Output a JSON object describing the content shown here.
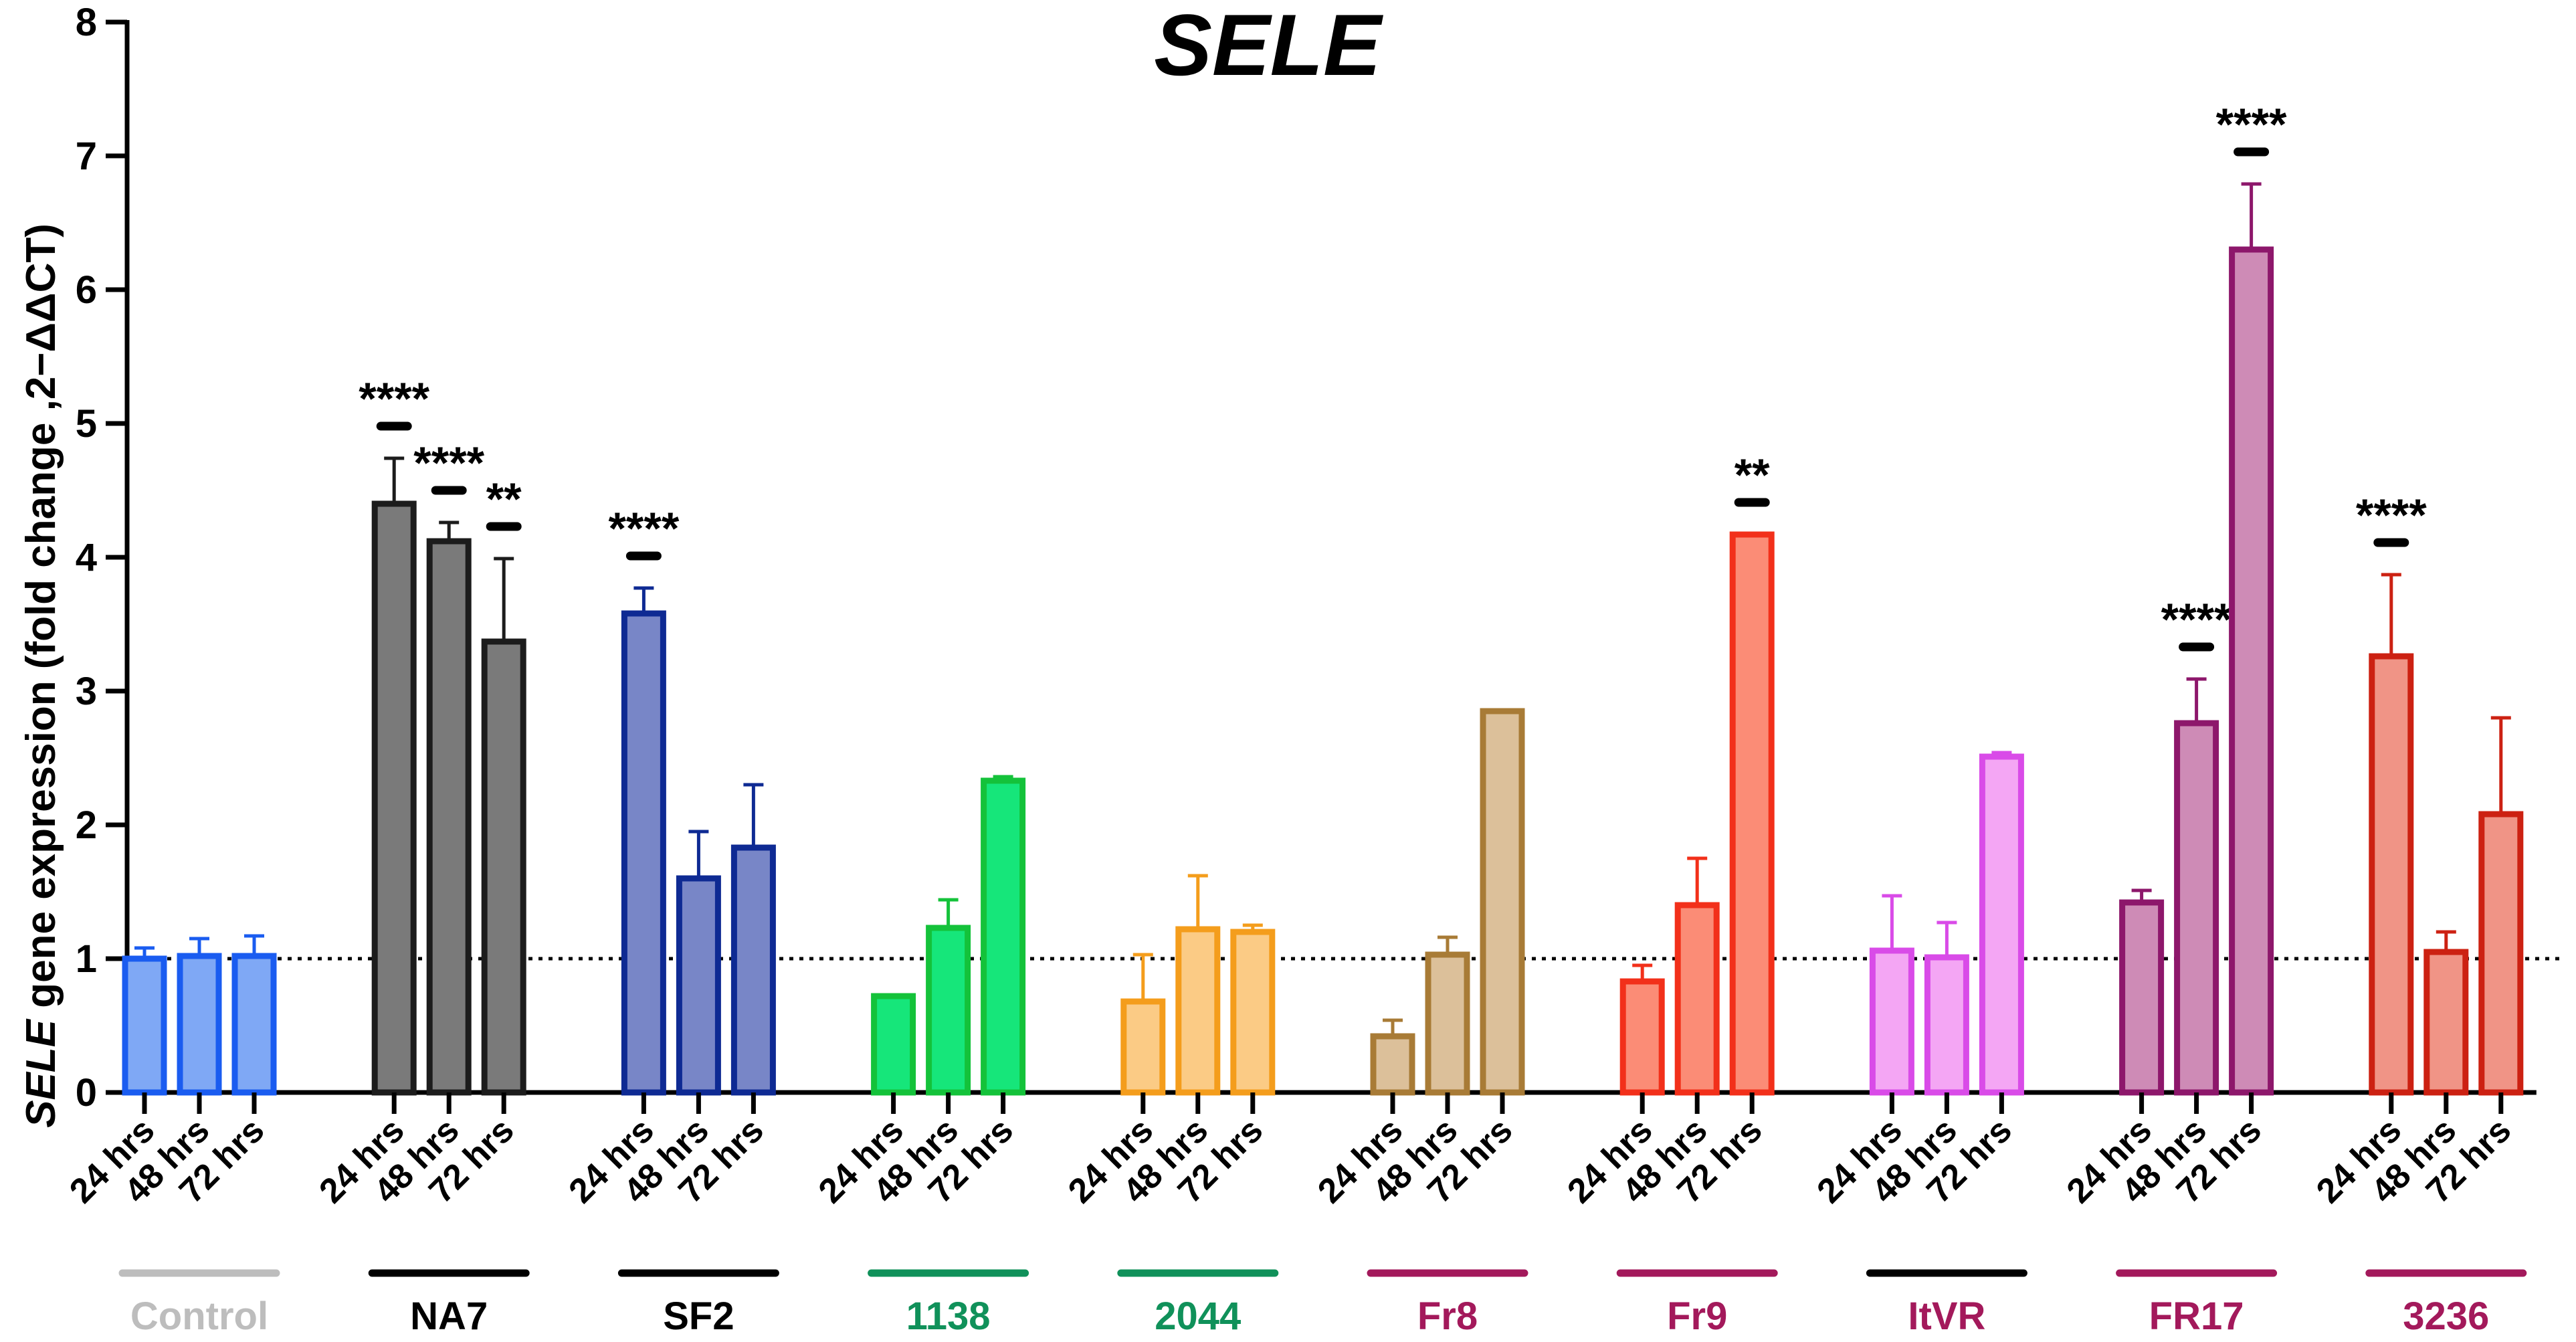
{
  "chart_data": {
    "type": "bar",
    "title": "SELE",
    "ylabel_italic": "SELE",
    "ylabel_rest": " gene expression (fold change ,2−ΔΔCT)",
    "ylim": [
      0,
      8
    ],
    "yticks": [
      "0",
      "1",
      "2",
      "3",
      "4",
      "5",
      "6",
      "7",
      "8"
    ],
    "reference_line": 1,
    "time_labels": [
      "24 hrs",
      "48 hrs",
      "72 hrs"
    ],
    "groups": [
      {
        "name": "Control",
        "label_color": "#BDBDBD",
        "fill": "#7FA8F5",
        "edge": "#1A5CF0",
        "values": [
          1.0,
          1.02,
          1.02
        ],
        "errors": [
          0.08,
          0.13,
          0.15
        ],
        "sig": [
          "",
          "",
          ""
        ]
      },
      {
        "name": "NA7",
        "label_color": "#000000",
        "fill": "#7A7A7A",
        "edge": "#1C1C1C",
        "values": [
          4.4,
          4.12,
          3.37
        ],
        "errors": [
          0.34,
          0.14,
          0.62
        ],
        "sig": [
          "****",
          "****",
          "**"
        ]
      },
      {
        "name": "SF2",
        "label_color": "#000000",
        "fill": "#7886C7",
        "edge": "#0E2A93",
        "values": [
          3.58,
          1.6,
          1.83
        ],
        "errors": [
          0.19,
          0.35,
          0.47
        ],
        "sig": [
          "****",
          "",
          ""
        ]
      },
      {
        "name": "1138",
        "label_color": "#10915A",
        "fill": "#16E67A",
        "edge": "#14C23A",
        "values": [
          0.72,
          1.23,
          2.33
        ],
        "errors": [
          0.0,
          0.21,
          0.03
        ],
        "sig": [
          "",
          "",
          ""
        ]
      },
      {
        "name": "2044",
        "label_color": "#10915A",
        "fill": "#FBCB85",
        "edge": "#F49D1C",
        "values": [
          0.68,
          1.22,
          1.2
        ],
        "errors": [
          0.35,
          0.4,
          0.05
        ],
        "sig": [
          "",
          "",
          ""
        ]
      },
      {
        "name": "Fr8",
        "label_color": "#A3195B",
        "fill": "#DCC09A",
        "edge": "#A87B36",
        "values": [
          0.42,
          1.03,
          2.85
        ],
        "errors": [
          0.12,
          0.13,
          0.0
        ],
        "sig": [
          "",
          "",
          ""
        ]
      },
      {
        "name": "Fr9",
        "label_color": "#A3195B",
        "fill": "#FB8C76",
        "edge": "#F2301A",
        "values": [
          0.83,
          1.4,
          4.17
        ],
        "errors": [
          0.12,
          0.35,
          0.0
        ],
        "sig": [
          "",
          "",
          "**"
        ]
      },
      {
        "name": "ItVR",
        "label_color": "#A3195B",
        "fill": "#F4A6F4",
        "edge": "#D94BE8",
        "values": [
          1.06,
          1.01,
          2.51
        ],
        "errors": [
          0.41,
          0.26,
          0.03
        ],
        "sig": [
          "",
          "",
          ""
        ]
      },
      {
        "name": "FR17",
        "label_color": "#A3195B",
        "fill": "#CE8BB6",
        "edge": "#8D176B",
        "values": [
          1.42,
          2.76,
          6.3
        ],
        "errors": [
          0.09,
          0.33,
          0.49
        ],
        "sig": [
          "",
          "****",
          "****"
        ]
      },
      {
        "name": "3236",
        "label_color": "#A3195B",
        "fill": "#F09486",
        "edge": "#CC2112",
        "values": [
          3.26,
          1.05,
          2.08
        ],
        "errors": [
          0.61,
          0.15,
          0.72
        ],
        "sig": [
          "****",
          "",
          ""
        ]
      }
    ],
    "underline_colors": [
      "#BDBDBD",
      "#000000",
      "#000000",
      "#10915A",
      "#10915A",
      "#A3195B",
      "#A3195B",
      "#000000",
      "#A3195B",
      "#A3195B"
    ]
  }
}
